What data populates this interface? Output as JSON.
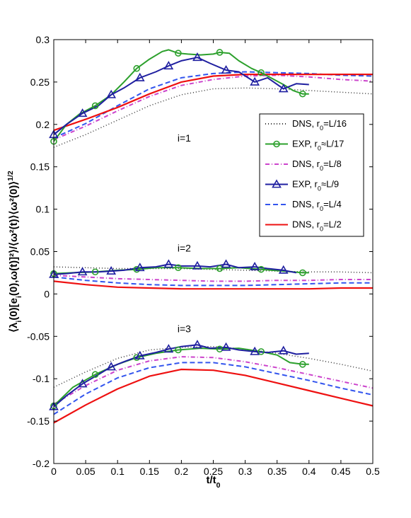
{
  "chart_data": {
    "type": "line",
    "title": "",
    "xlabel": "t/t_0",
    "ylabel": "⟨λ_i(0)[e_i(0),ω(t)]²⟩/⟨ω²(t)⟩⟨ω²(0)⟩^{1/2}",
    "xlim": [
      0,
      0.5
    ],
    "ylim": [
      -0.2,
      0.3
    ],
    "x_ticks": [
      "0",
      "0.05",
      "0.1",
      "0.15",
      "0.2",
      "0.25",
      "0.3",
      "0.35",
      "0.4",
      "0.45",
      "0.5"
    ],
    "y_ticks": [
      "-0.2",
      "-0.15",
      "-0.1",
      "-0.05",
      "0",
      "0.05",
      "0.1",
      "0.15",
      "0.2",
      "0.25",
      "0.3"
    ],
    "grid": false,
    "legend_position": "right",
    "annotations": [
      {
        "text": "i=1",
        "x": 0.2,
        "y": 0.18
      },
      {
        "text": "i=2",
        "x": 0.2,
        "y": 0.05
      },
      {
        "text": "i=3",
        "x": 0.2,
        "y": -0.045
      }
    ],
    "legend": [
      {
        "label": "DNS, r_0=L/16",
        "color": "#333333",
        "dash": "1,3",
        "marker": "none"
      },
      {
        "label": "EXP, r_0≈L/17",
        "color": "#2ca02c",
        "dash": "none",
        "marker": "circle"
      },
      {
        "label": "DNS, r_0=L/8",
        "color": "#cc44cc",
        "dash": "6,3,1,3",
        "marker": "none"
      },
      {
        "label": "EXP, r_0≈L/9",
        "color": "#1f1fa0",
        "dash": "none",
        "marker": "triangle"
      },
      {
        "label": "DNS, r_0=L/4",
        "color": "#3355ee",
        "dash": "7,4",
        "marker": "none"
      },
      {
        "label": "DNS, r_0=L/2",
        "color": "#ee1111",
        "dash": "none",
        "marker": "none"
      }
    ],
    "series": [
      {
        "name": "DNS, r_0=L/16",
        "group": "i=1",
        "color": "#333333",
        "dash": "1,3",
        "marker": "none",
        "x": [
          0,
          0.05,
          0.1,
          0.15,
          0.2,
          0.25,
          0.3,
          0.35,
          0.4,
          0.45,
          0.5
        ],
        "y": [
          0.173,
          0.188,
          0.205,
          0.222,
          0.235,
          0.242,
          0.243,
          0.242,
          0.24,
          0.238,
          0.236
        ]
      },
      {
        "name": "DNS, r_0=L/8",
        "group": "i=1",
        "color": "#cc44cc",
        "dash": "6,3,1,3",
        "marker": "none",
        "x": [
          0,
          0.05,
          0.1,
          0.15,
          0.2,
          0.25,
          0.3,
          0.35,
          0.4,
          0.45,
          0.5
        ],
        "y": [
          0.182,
          0.198,
          0.216,
          0.233,
          0.246,
          0.253,
          0.257,
          0.258,
          0.256,
          0.253,
          0.251
        ]
      },
      {
        "name": "DNS, r_0=L/4",
        "group": "i=1",
        "color": "#3355ee",
        "dash": "7,4",
        "marker": "none",
        "x": [
          0,
          0.05,
          0.1,
          0.15,
          0.2,
          0.25,
          0.3,
          0.35,
          0.4,
          0.45,
          0.5
        ],
        "y": [
          0.184,
          0.201,
          0.222,
          0.242,
          0.255,
          0.26,
          0.262,
          0.261,
          0.26,
          0.258,
          0.257
        ]
      },
      {
        "name": "DNS, r_0=L/2",
        "group": "i=1",
        "color": "#ee1111",
        "dash": "none",
        "marker": "none",
        "x": [
          0,
          0.05,
          0.1,
          0.15,
          0.2,
          0.25,
          0.3,
          0.35,
          0.4,
          0.45,
          0.5
        ],
        "y": [
          0.193,
          0.206,
          0.22,
          0.236,
          0.25,
          0.257,
          0.259,
          0.259,
          0.259,
          0.259,
          0.259
        ]
      },
      {
        "name": "EXP, r_0≈L/17",
        "group": "i=1",
        "color": "#2ca02c",
        "dash": "none",
        "marker": "circle",
        "marker_x": [
          0,
          0.065,
          0.13,
          0.195,
          0.26,
          0.325,
          0.39
        ],
        "x": [
          0,
          0.02,
          0.04,
          0.065,
          0.09,
          0.11,
          0.13,
          0.15,
          0.17,
          0.18,
          0.195,
          0.21,
          0.23,
          0.25,
          0.26,
          0.275,
          0.29,
          0.31,
          0.325,
          0.34,
          0.36,
          0.375,
          0.39,
          0.4
        ],
        "y": [
          0.18,
          0.2,
          0.212,
          0.222,
          0.235,
          0.25,
          0.266,
          0.277,
          0.286,
          0.288,
          0.284,
          0.283,
          0.282,
          0.283,
          0.285,
          0.284,
          0.275,
          0.266,
          0.261,
          0.255,
          0.247,
          0.24,
          0.236,
          0.236
        ]
      },
      {
        "name": "EXP, r_0≈L/9",
        "group": "i=1",
        "color": "#1f1fa0",
        "dash": "none",
        "marker": "triangle",
        "marker_x": [
          0,
          0.045,
          0.09,
          0.135,
          0.18,
          0.225,
          0.27,
          0.315,
          0.36
        ],
        "x": [
          0,
          0.02,
          0.045,
          0.07,
          0.09,
          0.11,
          0.135,
          0.16,
          0.18,
          0.2,
          0.225,
          0.245,
          0.27,
          0.29,
          0.315,
          0.335,
          0.36,
          0.38,
          0.4
        ],
        "y": [
          0.188,
          0.2,
          0.213,
          0.222,
          0.235,
          0.243,
          0.255,
          0.262,
          0.269,
          0.275,
          0.279,
          0.272,
          0.264,
          0.262,
          0.25,
          0.255,
          0.242,
          0.248,
          0.247
        ]
      },
      {
        "name": "DNS, r_0=L/16",
        "group": "i=2",
        "color": "#333333",
        "dash": "1,3",
        "marker": "none",
        "x": [
          0,
          0.05,
          0.1,
          0.15,
          0.2,
          0.25,
          0.3,
          0.35,
          0.4,
          0.45,
          0.5
        ],
        "y": [
          0.032,
          0.031,
          0.03,
          0.03,
          0.03,
          0.029,
          0.028,
          0.027,
          0.026,
          0.026,
          0.025
        ]
      },
      {
        "name": "DNS, r_0=L/8",
        "group": "i=2",
        "color": "#cc44cc",
        "dash": "6,3,1,3",
        "marker": "none",
        "x": [
          0,
          0.05,
          0.1,
          0.15,
          0.2,
          0.25,
          0.3,
          0.35,
          0.4,
          0.45,
          0.5
        ],
        "y": [
          0.022,
          0.02,
          0.018,
          0.017,
          0.016,
          0.015,
          0.015,
          0.016,
          0.016,
          0.017,
          0.017
        ]
      },
      {
        "name": "DNS, r_0=L/4",
        "group": "i=2",
        "color": "#3355ee",
        "dash": "7,4",
        "marker": "none",
        "x": [
          0,
          0.05,
          0.1,
          0.15,
          0.2,
          0.25,
          0.3,
          0.35,
          0.4,
          0.45,
          0.5
        ],
        "y": [
          0.02,
          0.016,
          0.013,
          0.011,
          0.01,
          0.01,
          0.01,
          0.011,
          0.012,
          0.013,
          0.013
        ]
      },
      {
        "name": "DNS, r_0=L/2",
        "group": "i=2",
        "color": "#ee1111",
        "dash": "none",
        "marker": "none",
        "x": [
          0,
          0.05,
          0.1,
          0.15,
          0.2,
          0.25,
          0.3,
          0.35,
          0.4,
          0.45,
          0.5
        ],
        "y": [
          0.015,
          0.011,
          0.008,
          0.007,
          0.006,
          0.006,
          0.006,
          0.006,
          0.006,
          0.007,
          0.007
        ]
      },
      {
        "name": "EXP, r_0≈L/17",
        "group": "i=2",
        "color": "#2ca02c",
        "dash": "none",
        "marker": "circle",
        "marker_x": [
          0,
          0.065,
          0.13,
          0.195,
          0.26,
          0.325,
          0.39
        ],
        "x": [
          0,
          0.03,
          0.065,
          0.1,
          0.13,
          0.16,
          0.195,
          0.23,
          0.26,
          0.29,
          0.325,
          0.36,
          0.39,
          0.4
        ],
        "y": [
          0.024,
          0.025,
          0.026,
          0.028,
          0.029,
          0.031,
          0.031,
          0.03,
          0.03,
          0.031,
          0.029,
          0.027,
          0.025,
          0.025
        ]
      },
      {
        "name": "EXP, r_0≈L/9",
        "group": "i=2",
        "color": "#1f1fa0",
        "dash": "none",
        "marker": "triangle",
        "marker_x": [
          0,
          0.045,
          0.09,
          0.135,
          0.18,
          0.225,
          0.27,
          0.315,
          0.36
        ],
        "x": [
          0,
          0.02,
          0.045,
          0.07,
          0.09,
          0.11,
          0.135,
          0.16,
          0.18,
          0.2,
          0.225,
          0.245,
          0.27,
          0.29,
          0.315,
          0.335,
          0.36,
          0.38
        ],
        "y": [
          0.023,
          0.024,
          0.026,
          0.026,
          0.027,
          0.028,
          0.031,
          0.032,
          0.035,
          0.033,
          0.033,
          0.032,
          0.035,
          0.031,
          0.032,
          0.03,
          0.028,
          0.025
        ]
      },
      {
        "name": "DNS, r_0=L/16",
        "group": "i=3",
        "color": "#333333",
        "dash": "1,3",
        "marker": "none",
        "x": [
          0,
          0.05,
          0.1,
          0.15,
          0.2,
          0.25,
          0.3,
          0.35,
          0.4,
          0.45,
          0.5
        ],
        "y": [
          -0.11,
          -0.092,
          -0.076,
          -0.066,
          -0.063,
          -0.062,
          -0.065,
          -0.07,
          -0.076,
          -0.083,
          -0.091
        ]
      },
      {
        "name": "DNS, r_0=L/8",
        "group": "i=3",
        "color": "#cc44cc",
        "dash": "6,3,1,3",
        "marker": "none",
        "x": [
          0,
          0.05,
          0.1,
          0.15,
          0.2,
          0.25,
          0.3,
          0.35,
          0.4,
          0.45,
          0.5
        ],
        "y": [
          -0.13,
          -0.108,
          -0.09,
          -0.079,
          -0.074,
          -0.075,
          -0.08,
          -0.087,
          -0.095,
          -0.103,
          -0.111
        ]
      },
      {
        "name": "DNS, r_0=L/4",
        "group": "i=3",
        "color": "#3355ee",
        "dash": "7,4",
        "marker": "none",
        "x": [
          0,
          0.05,
          0.1,
          0.15,
          0.2,
          0.25,
          0.3,
          0.35,
          0.4,
          0.45,
          0.5
        ],
        "y": [
          -0.142,
          -0.118,
          -0.099,
          -0.087,
          -0.081,
          -0.081,
          -0.086,
          -0.094,
          -0.102,
          -0.111,
          -0.119
        ]
      },
      {
        "name": "DNS, r_0=L/2",
        "group": "i=3",
        "color": "#ee1111",
        "dash": "none",
        "marker": "none",
        "x": [
          0,
          0.05,
          0.1,
          0.15,
          0.2,
          0.25,
          0.3,
          0.35,
          0.4,
          0.45,
          0.5
        ],
        "y": [
          -0.152,
          -0.131,
          -0.112,
          -0.097,
          -0.089,
          -0.09,
          -0.096,
          -0.105,
          -0.114,
          -0.123,
          -0.132
        ]
      },
      {
        "name": "EXP, r_0≈L/17",
        "group": "i=3",
        "color": "#2ca02c",
        "dash": "none",
        "marker": "circle",
        "marker_x": [
          0,
          0.065,
          0.13,
          0.195,
          0.26,
          0.325,
          0.39
        ],
        "x": [
          0,
          0.03,
          0.065,
          0.1,
          0.13,
          0.16,
          0.195,
          0.23,
          0.26,
          0.29,
          0.325,
          0.35,
          0.37,
          0.39,
          0.4
        ],
        "y": [
          -0.132,
          -0.11,
          -0.095,
          -0.083,
          -0.075,
          -0.07,
          -0.066,
          -0.064,
          -0.065,
          -0.064,
          -0.068,
          -0.072,
          -0.081,
          -0.083,
          -0.083
        ]
      },
      {
        "name": "EXP, r_0≈L/9",
        "group": "i=3",
        "color": "#1f1fa0",
        "dash": "none",
        "marker": "triangle",
        "marker_x": [
          0,
          0.045,
          0.09,
          0.135,
          0.18,
          0.225,
          0.27,
          0.315,
          0.36
        ],
        "x": [
          0,
          0.02,
          0.045,
          0.07,
          0.09,
          0.11,
          0.135,
          0.16,
          0.18,
          0.2,
          0.225,
          0.245,
          0.27,
          0.29,
          0.315,
          0.335,
          0.36,
          0.38,
          0.4
        ],
        "y": [
          -0.133,
          -0.12,
          -0.106,
          -0.095,
          -0.086,
          -0.08,
          -0.073,
          -0.069,
          -0.065,
          -0.062,
          -0.06,
          -0.064,
          -0.063,
          -0.066,
          -0.068,
          -0.069,
          -0.067,
          -0.071,
          -0.07
        ]
      }
    ]
  }
}
